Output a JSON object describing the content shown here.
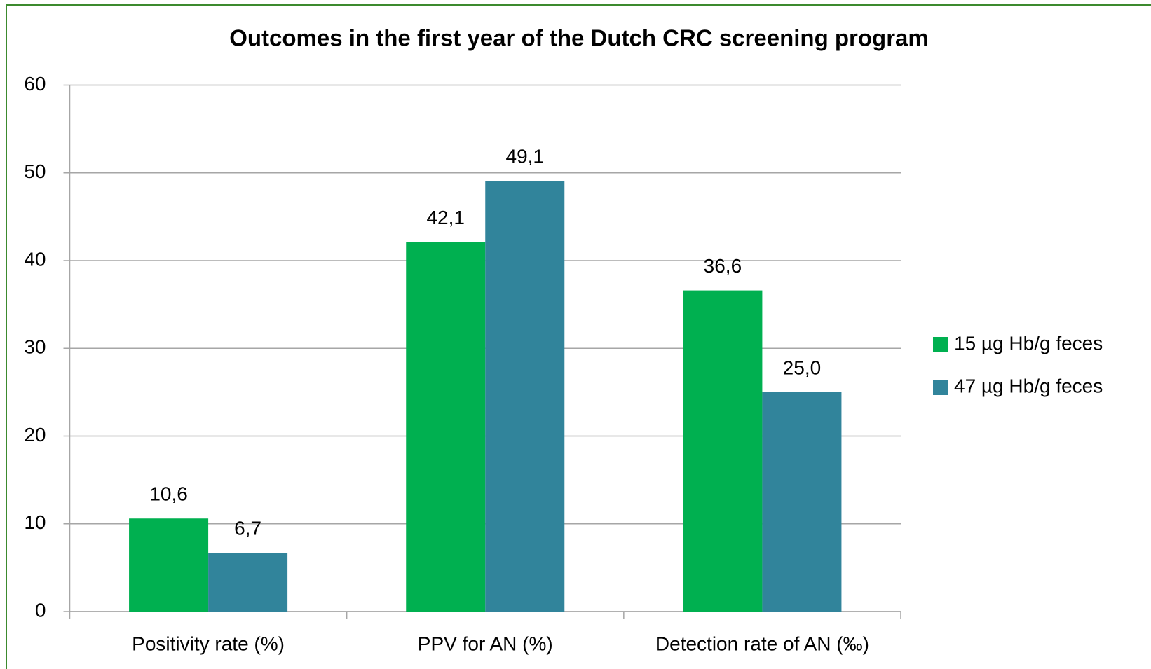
{
  "chart_data": {
    "type": "bar",
    "title": "Outcomes in the first year of the Dutch CRC screening program",
    "categories": [
      "Positivity rate (%)",
      "PPV for AN (%)",
      "Detection rate of AN (‰)"
    ],
    "series": [
      {
        "name": "15 µg Hb/g feces",
        "color": "#00b050",
        "values": [
          10.6,
          42.1,
          36.6
        ],
        "value_labels": [
          "10,6",
          "42,1",
          "36,6"
        ]
      },
      {
        "name": "47 µg Hb/g feces",
        "color": "#31849b",
        "values": [
          6.7,
          49.1,
          25.0
        ],
        "value_labels": [
          "6,7",
          "49,1",
          "25,0"
        ]
      }
    ],
    "ylim": [
      0,
      60
    ],
    "yticks": [
      0,
      10,
      20,
      30,
      40,
      50,
      60
    ],
    "grid": true,
    "legend": "right"
  }
}
